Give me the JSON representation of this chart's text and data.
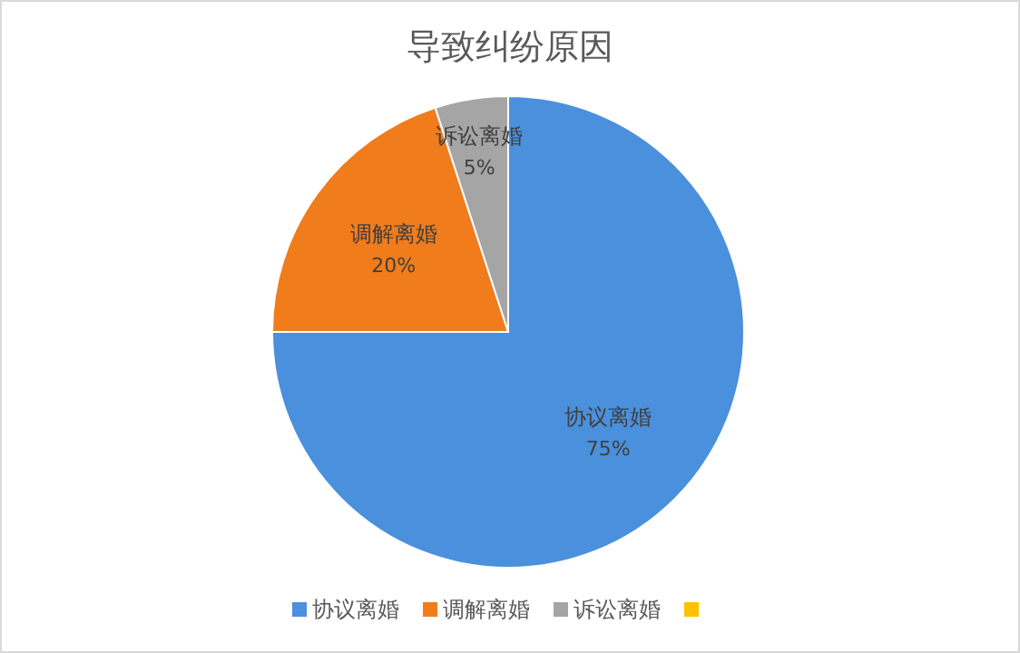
{
  "chart_data": {
    "type": "pie",
    "title": "导致纠纷原因",
    "categories": [
      "协议离婚",
      "调解离婚",
      "诉讼离婚",
      null
    ],
    "values": [
      75,
      20,
      5,
      0
    ],
    "colors": [
      "#4a90dc",
      "#f07c1c",
      "#a5a5a5",
      "#ffc000"
    ],
    "value_labels": [
      "75%",
      "20%",
      "5%",
      null
    ],
    "legend": "bottom"
  }
}
